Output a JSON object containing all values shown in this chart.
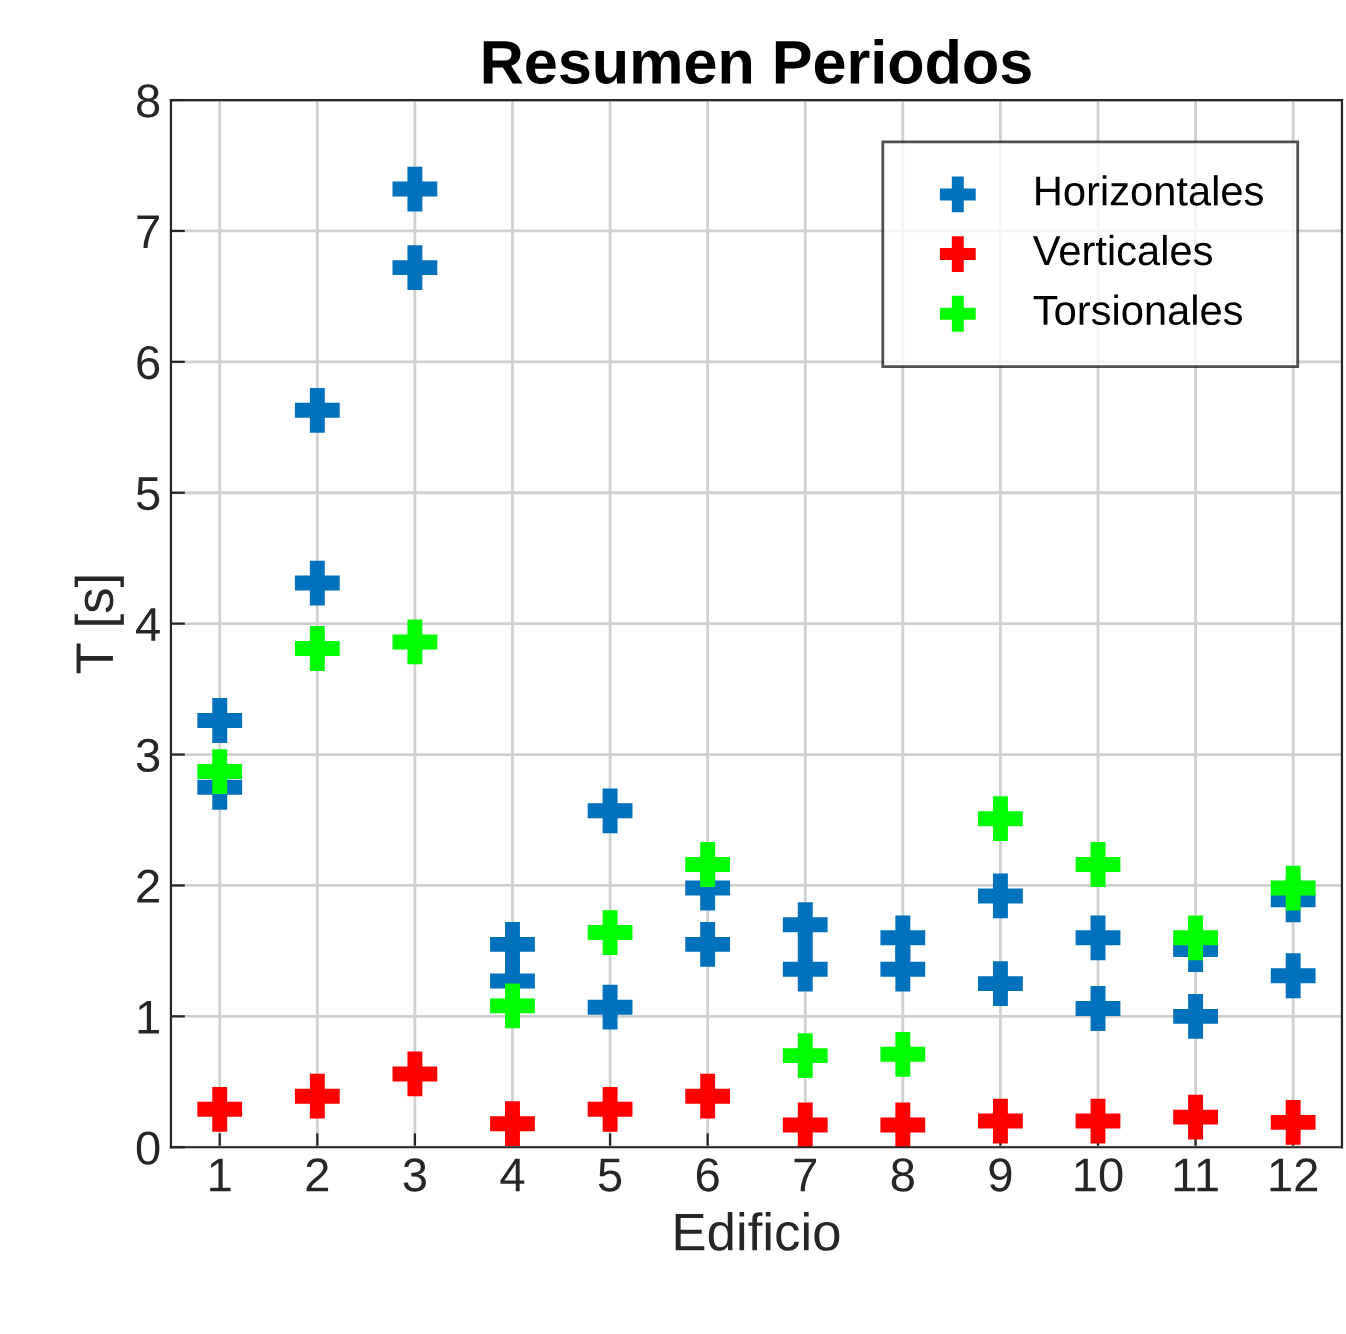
{
  "chart_data": {
    "type": "scatter",
    "title": "Resumen Periodos",
    "xlabel": "Edificio",
    "ylabel": "T [s]",
    "xlim": [
      0.5,
      12.5
    ],
    "xticks": [
      1,
      2,
      3,
      4,
      5,
      6,
      7,
      8,
      9,
      10,
      11,
      12
    ],
    "ylim": [
      0,
      8
    ],
    "yticks": [
      0,
      1,
      2,
      3,
      4,
      5,
      6,
      7,
      8
    ],
    "grid": true,
    "legend": "top right",
    "marker": "cross",
    "series": [
      {
        "name": "Horizontales",
        "color": "#0072bd",
        "x": [
          1,
          1,
          2,
          2,
          3,
          3,
          4,
          4,
          5,
          5,
          6,
          6,
          7,
          7,
          8,
          8,
          9,
          9,
          10,
          10,
          11,
          11,
          12,
          12
        ],
        "values": [
          3.26,
          2.75,
          5.63,
          4.31,
          7.32,
          6.72,
          1.55,
          1.27,
          2.57,
          1.07,
          1.98,
          1.55,
          1.7,
          1.36,
          1.6,
          1.36,
          1.92,
          1.25,
          1.6,
          1.06,
          1.51,
          1.0,
          1.89,
          1.31
        ]
      },
      {
        "name": "Verticales",
        "color": "#ff0000",
        "x": [
          1,
          2,
          3,
          4,
          5,
          6,
          7,
          8,
          9,
          10,
          11,
          12
        ],
        "values": [
          0.29,
          0.39,
          0.56,
          0.18,
          0.29,
          0.39,
          0.17,
          0.17,
          0.2,
          0.2,
          0.23,
          0.19
        ]
      },
      {
        "name": "Torsionales",
        "color": "#00ff00",
        "x": [
          1,
          2,
          3,
          4,
          5,
          6,
          7,
          8,
          9,
          10,
          11,
          12
        ],
        "values": [
          2.87,
          3.81,
          3.86,
          1.08,
          1.64,
          2.16,
          0.7,
          0.71,
          2.51,
          2.16,
          1.6,
          1.98
        ]
      }
    ]
  }
}
